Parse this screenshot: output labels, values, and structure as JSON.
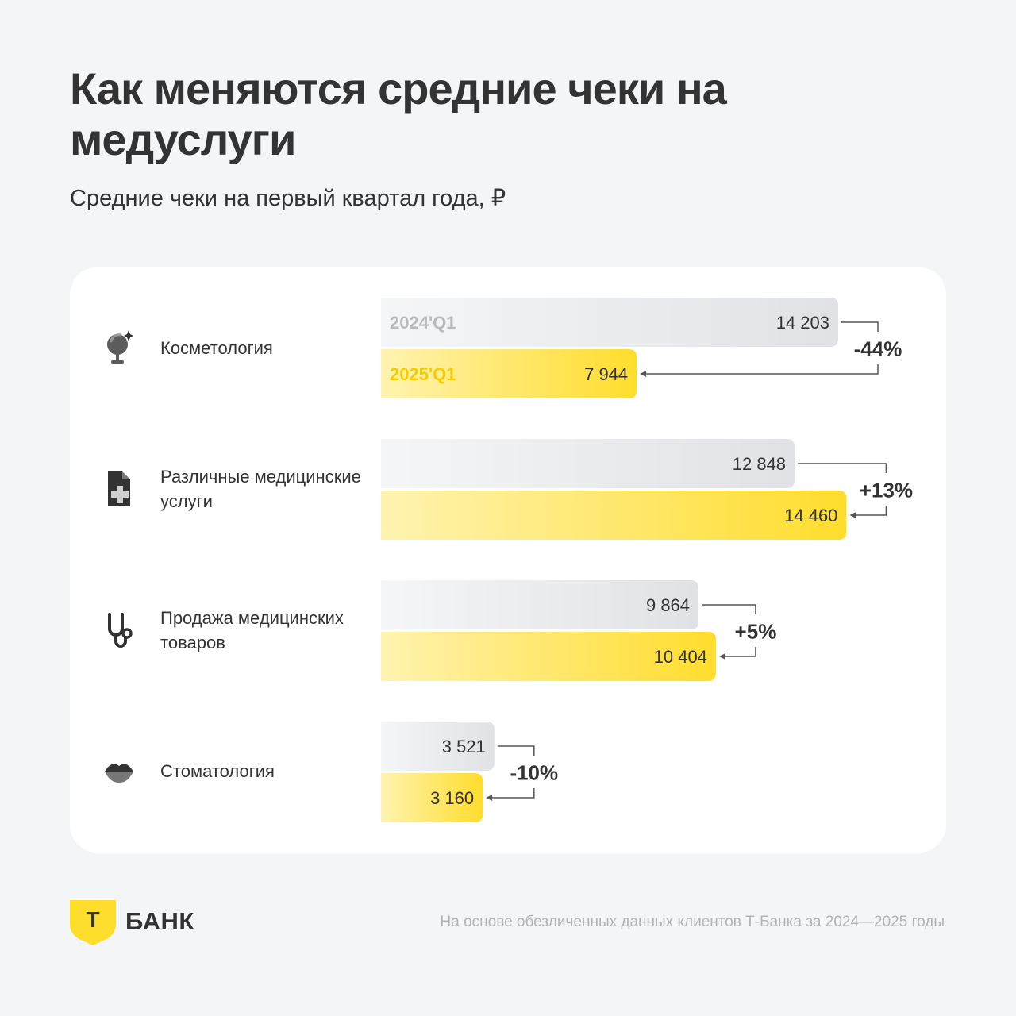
{
  "title": "Как меняются средние чеки на медуслуги",
  "subtitle": "Средние чеки на первый квартал года, ₽",
  "colors": {
    "series_2024": "#e5e7ea",
    "series_2025": "#ffdd2d",
    "text": "#333333",
    "note": "#b3b3b3"
  },
  "chart_data": {
    "type": "bar",
    "orientation": "horizontal",
    "categories": [
      {
        "label": "Косметология",
        "icon": "mirror-icon"
      },
      {
        "label": "Различные медицинские услуги",
        "icon": "medical-document-icon"
      },
      {
        "label": "Продажа медицинских товаров",
        "icon": "stethoscope-icon"
      },
      {
        "label": "Стоматология",
        "icon": "lips-icon"
      }
    ],
    "series": [
      {
        "name": "2024'Q1",
        "values": [
          14203,
          12848,
          9864,
          3521
        ]
      },
      {
        "name": "2025'Q1",
        "values": [
          7944,
          14460,
          10404,
          3160
        ]
      }
    ],
    "value_labels": [
      [
        "14 203",
        "12 848",
        "9 864",
        "3 521"
      ],
      [
        "7 944",
        "14 460",
        "10 404",
        "3 160"
      ]
    ],
    "changes": [
      "-44%",
      "+13%",
      "+5%",
      "-10%"
    ],
    "xlim": [
      0,
      16000
    ],
    "grid": false,
    "legend": "inline-first-group"
  },
  "footer": {
    "logo_letter": "Т",
    "brand": "БАНК",
    "note": "На основе обезличенных данных клиентов Т-Банка за 2024—2025 годы"
  }
}
